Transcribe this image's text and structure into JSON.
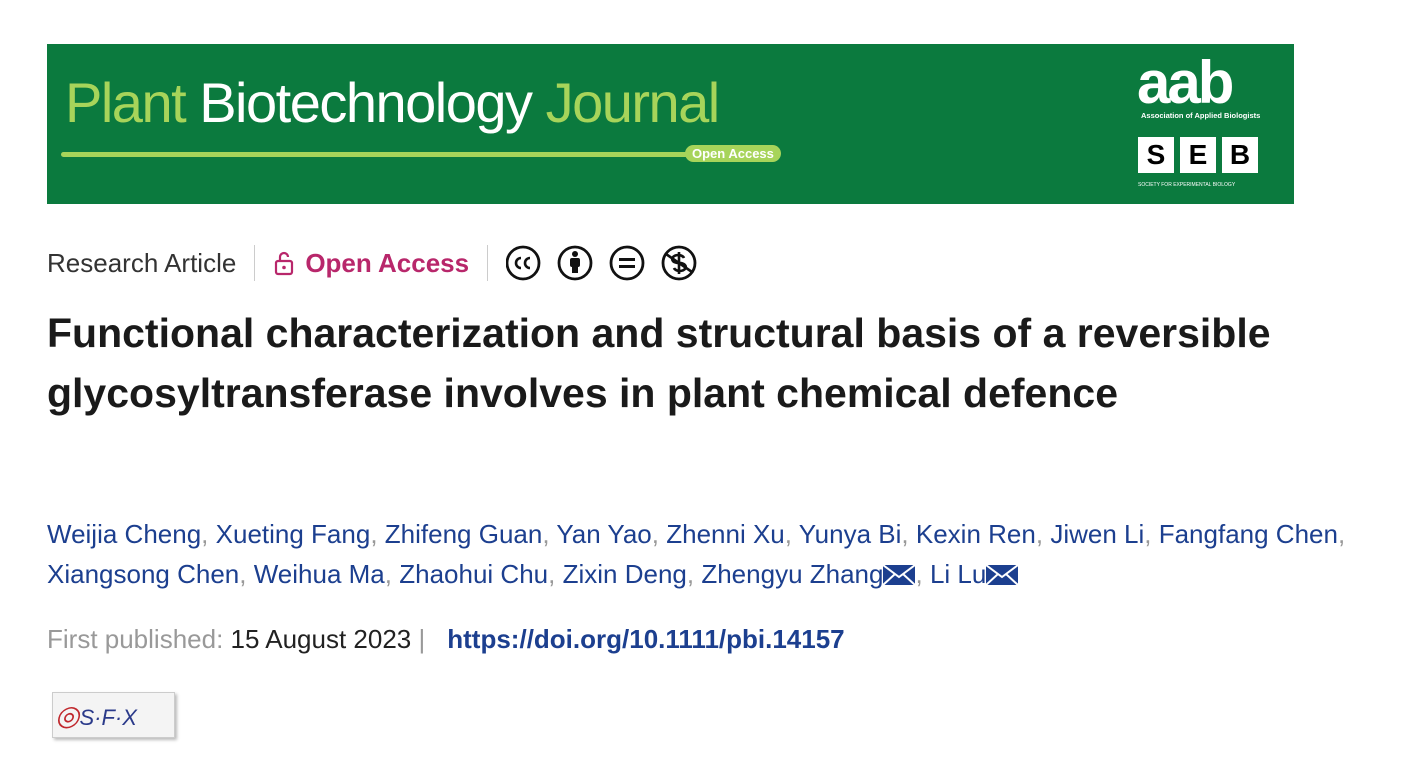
{
  "banner": {
    "journal_title": [
      "Plant",
      "Biotechnology",
      "Journal"
    ],
    "badge": "Open Access",
    "aab": "aab",
    "aab_subtitle": "Association of Applied Biologists",
    "seb_letters": [
      "S",
      "E",
      "B"
    ],
    "seb_subtitle": "SOCIETY FOR EXPERIMENTAL BIOLOGY"
  },
  "article_type": "Research Article",
  "open_access": "Open Access",
  "title": "Functional characterization and structural basis of a reversible glycosyltransferase involves in plant chemical defence",
  "authors": [
    {
      "name": "Weijia Cheng",
      "corresponding": false
    },
    {
      "name": "Xueting Fang",
      "corresponding": false
    },
    {
      "name": "Zhifeng Guan",
      "corresponding": false
    },
    {
      "name": "Yan Yao",
      "corresponding": false
    },
    {
      "name": "Zhenni Xu",
      "corresponding": false
    },
    {
      "name": "Yunya Bi",
      "corresponding": false
    },
    {
      "name": "Kexin Ren",
      "corresponding": false
    },
    {
      "name": "Jiwen Li",
      "corresponding": false
    },
    {
      "name": "Fangfang Chen",
      "corresponding": false
    },
    {
      "name": "Xiangsong Chen",
      "corresponding": false
    },
    {
      "name": "Weihua Ma",
      "corresponding": false
    },
    {
      "name": "Zhaohui Chu",
      "corresponding": false
    },
    {
      "name": "Zixin Deng",
      "corresponding": false
    },
    {
      "name": "Zhengyu Zhang",
      "corresponding": true
    },
    {
      "name": "Li Lu",
      "corresponding": true
    }
  ],
  "author_separator": ",",
  "published": {
    "label": "First published:",
    "date": "15 August 2023",
    "separator": "|",
    "doi": "https://doi.org/10.1111/pbi.14157"
  },
  "sfx": "S·F·X"
}
